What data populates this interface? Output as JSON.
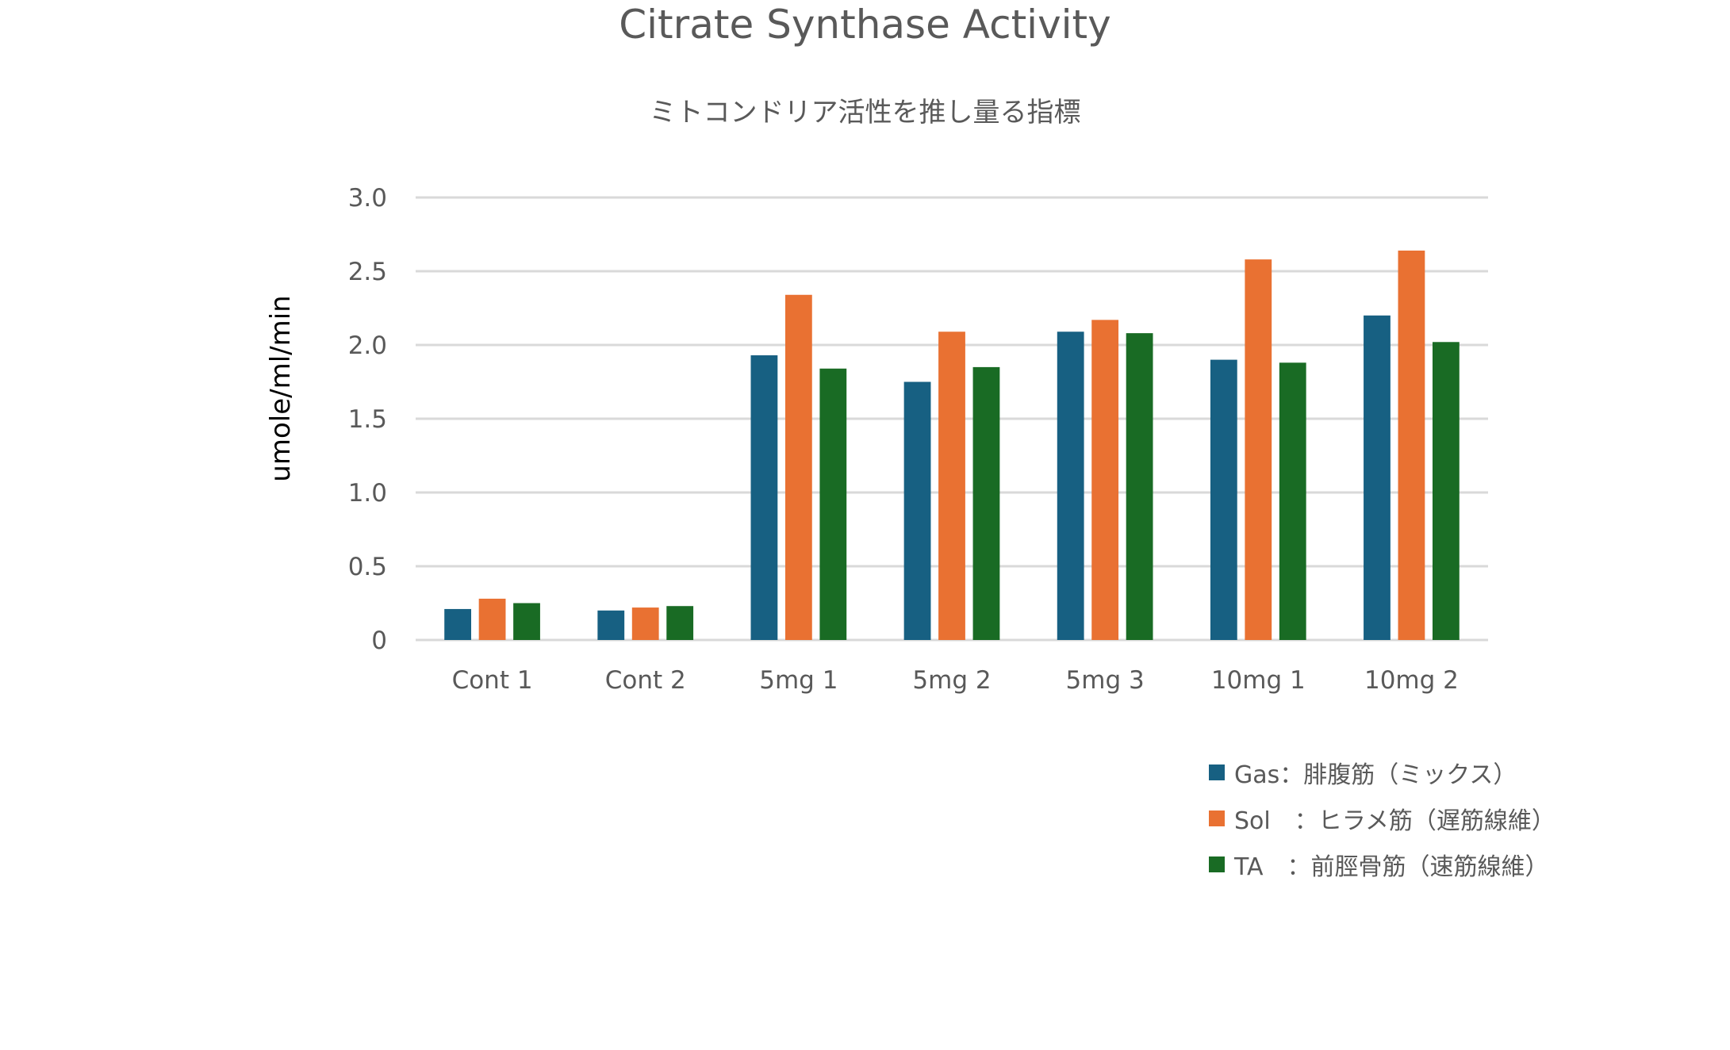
{
  "chart_data": {
    "type": "bar",
    "title": "Citrate Synthase Activity",
    "subtitle": "ミトコンドリア活性を推し量る指標",
    "xlabel": "",
    "ylabel": "umole/ml/min",
    "ylim": [
      0,
      3.0
    ],
    "yticks": [
      "0",
      "0.5",
      "1.0",
      "1.5",
      "2.0",
      "2.5",
      "3.0"
    ],
    "grid": true,
    "legend_position": "bottom-right",
    "categories": [
      "Cont 1",
      "Cont 2",
      "5mg 1",
      "5mg 2",
      "5mg 3",
      "10mg 1",
      "10mg 2"
    ],
    "series": [
      {
        "name": "Gas：腓腹筋（ミックス）",
        "color": "#176082",
        "values": [
          0.21,
          0.2,
          1.93,
          1.75,
          2.09,
          1.9,
          2.2
        ]
      },
      {
        "name": "Sol　：ヒラメ筋（遅筋線維）",
        "color": "#E97132",
        "values": [
          0.28,
          0.22,
          2.34,
          2.09,
          2.17,
          2.58,
          2.64
        ]
      },
      {
        "name": "TA　：前脛骨筋（速筋線維）",
        "color": "#196B24",
        "values": [
          0.25,
          0.23,
          1.84,
          1.85,
          2.08,
          1.88,
          2.02
        ]
      }
    ]
  }
}
